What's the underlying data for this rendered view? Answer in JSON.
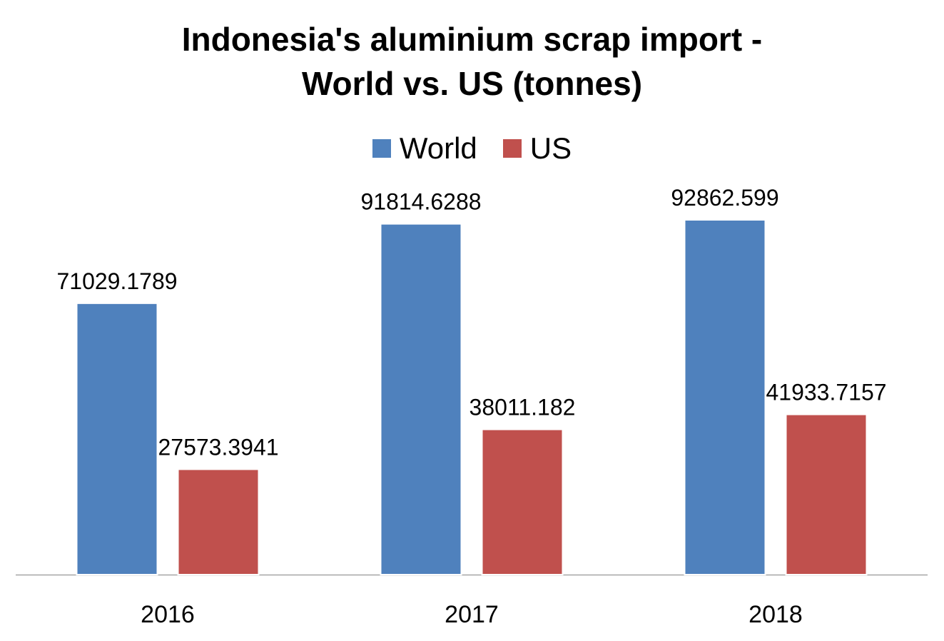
{
  "chart_data": {
    "type": "bar",
    "title_lines": [
      "Indonesia's aluminium scrap import -",
      "World vs. US (tonnes)"
    ],
    "categories": [
      "2016",
      "2017",
      "2018"
    ],
    "series": [
      {
        "name": "World",
        "color": "#4F81BD",
        "values": [
          71029.1789,
          91814.6288,
          92862.599
        ],
        "labels": [
          "71029.1789",
          "91814.6288",
          "92862.599"
        ]
      },
      {
        "name": "US",
        "color": "#C0504D",
        "values": [
          27573.3941,
          38011.182,
          41933.7157
        ],
        "labels": [
          "27573.3941",
          "38011.182",
          "41933.7157"
        ]
      }
    ],
    "xlabel": "",
    "ylabel": "",
    "ylim": [
      0,
      92862.599
    ],
    "grid": false,
    "legend_position": "top"
  }
}
